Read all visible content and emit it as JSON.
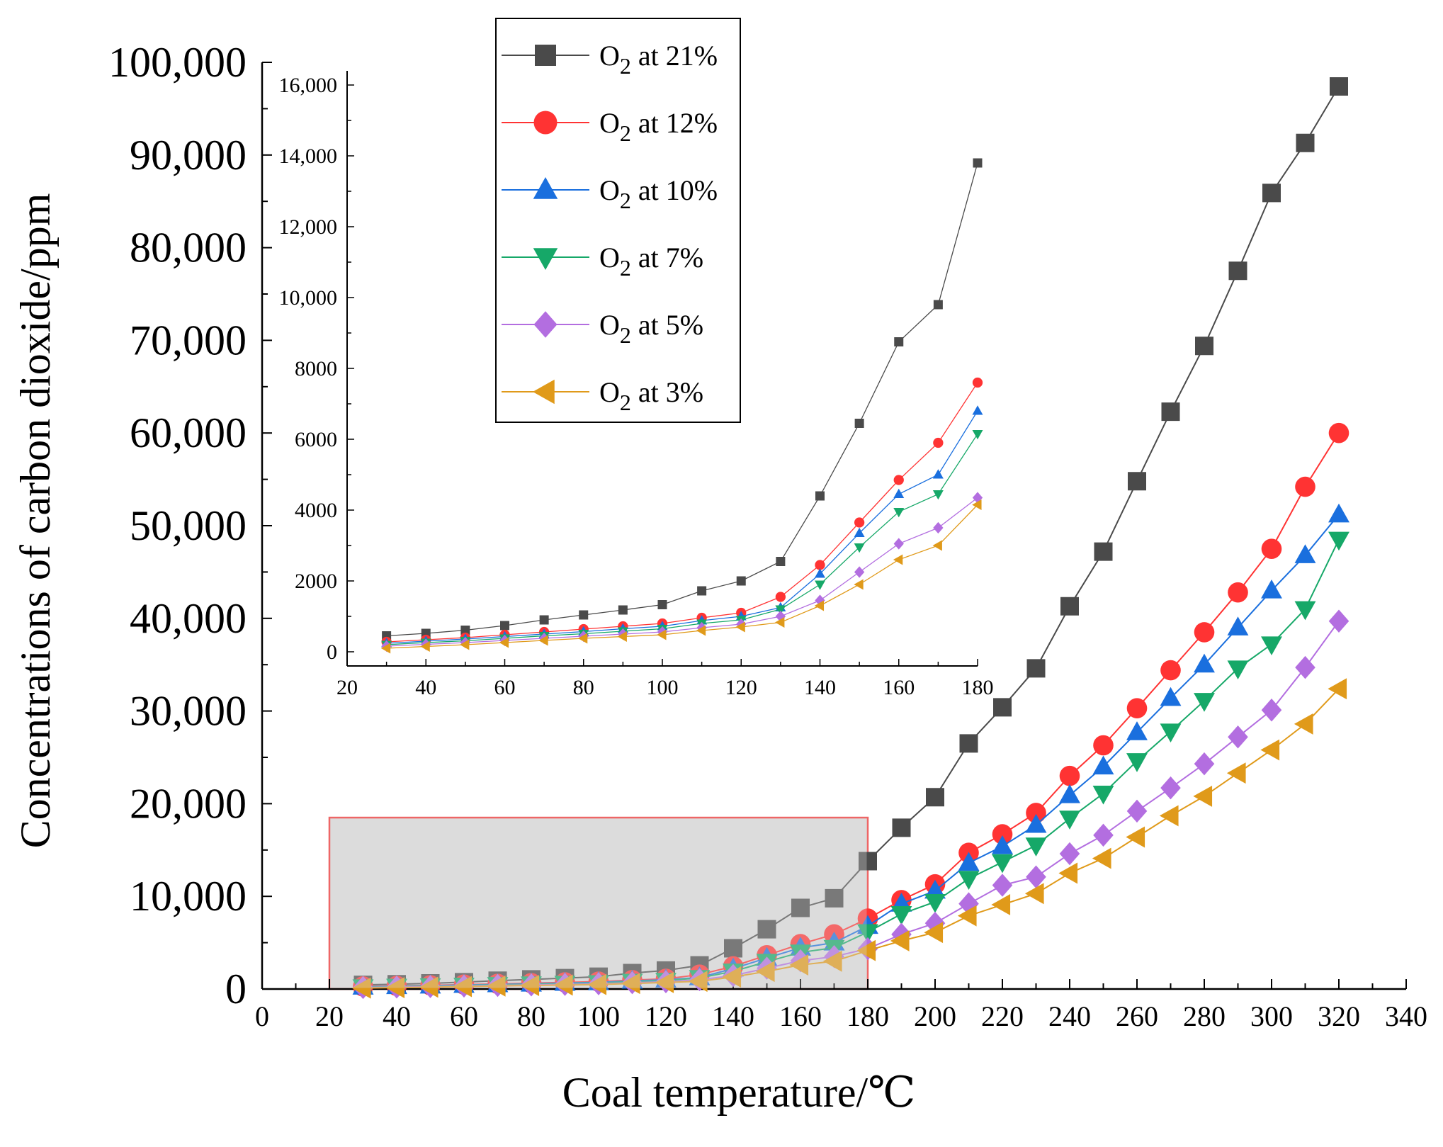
{
  "chart_data": {
    "type": "line",
    "title": "",
    "xlabel": "Coal temperature/℃",
    "ylabel": "Concentrations of carbon dioxide/ppm",
    "xlim": [
      0,
      340
    ],
    "ylim": [
      0,
      100000
    ],
    "xticks": [
      0,
      20,
      40,
      60,
      80,
      100,
      120,
      140,
      160,
      180,
      200,
      220,
      240,
      260,
      280,
      300,
      320,
      340
    ],
    "xtick_labels": [
      "0",
      "20",
      "40",
      "60",
      "80",
      "100",
      "120",
      "140",
      "160",
      "180",
      "200",
      "220",
      "240",
      "260",
      "280",
      "300",
      "320",
      "340"
    ],
    "yticks": [
      0,
      10000,
      20000,
      30000,
      40000,
      50000,
      60000,
      70000,
      80000,
      90000,
      100000
    ],
    "ytick_labels": [
      "0",
      "10,000",
      "20,000",
      "30,000",
      "40,000",
      "50,000",
      "60,000",
      "70,000",
      "80,000",
      "90,000",
      "100,000"
    ],
    "x": [
      30,
      40,
      50,
      60,
      70,
      80,
      90,
      100,
      110,
      120,
      130,
      140,
      150,
      160,
      170,
      180,
      190,
      200,
      210,
      220,
      230,
      240,
      250,
      260,
      270,
      280,
      290,
      300,
      310,
      320
    ],
    "series": [
      {
        "name": "O2 at 21%",
        "legend_main": "O",
        "legend_sub": "2",
        "legend_rest": " at 21%",
        "color": "#4a4a4a",
        "marker": "square",
        "values": [
          450,
          520,
          610,
          740,
          900,
          1040,
          1180,
          1330,
          1720,
          2000,
          2550,
          4400,
          6450,
          8750,
          9800,
          13800,
          17400,
          20700,
          26500,
          30400,
          34600,
          41300,
          47200,
          54800,
          62300,
          69400,
          77500,
          85900,
          91300,
          97400
        ]
      },
      {
        "name": "O2 at 12%",
        "legend_main": "O",
        "legend_sub": "2",
        "legend_rest": " at 12%",
        "color": "#ff3333",
        "marker": "circle",
        "values": [
          280,
          340,
          400,
          480,
          560,
          640,
          720,
          800,
          960,
          1100,
          1550,
          2450,
          3650,
          4850,
          5900,
          7600,
          9600,
          11300,
          14700,
          16700,
          19000,
          23000,
          26300,
          30300,
          34400,
          38500,
          42800,
          47500,
          54200,
          60000
        ]
      },
      {
        "name": "O2 at 10%",
        "legend_main": "O",
        "legend_sub": "2",
        "legend_rest": " at 10%",
        "color": "#1a6fde",
        "marker": "triangle-up",
        "values": [
          240,
          300,
          360,
          430,
          500,
          570,
          650,
          720,
          880,
          1000,
          1250,
          2200,
          3350,
          4450,
          5000,
          6800,
          9200,
          10600,
          13600,
          15400,
          17700,
          20900,
          24000,
          27700,
          31400,
          35000,
          39000,
          43000,
          46800,
          51200
        ]
      },
      {
        "name": "O2 at 7%",
        "legend_main": "O",
        "legend_sub": "2",
        "legend_rest": " at 7%",
        "color": "#16a868",
        "marker": "triangle-down",
        "values": [
          200,
          260,
          310,
          380,
          450,
          510,
          580,
          650,
          800,
          900,
          1200,
          1900,
          2950,
          3950,
          4450,
          6150,
          8100,
          9400,
          11900,
          13700,
          15500,
          18400,
          21100,
          24600,
          27800,
          31100,
          34600,
          37200,
          41000,
          48500
        ]
      },
      {
        "name": "O2 at 5%",
        "legend_main": "O",
        "legend_sub": "2",
        "legend_rest": " at 5%",
        "color": "#b36ee0",
        "marker": "diamond",
        "values": [
          160,
          210,
          260,
          320,
          380,
          440,
          500,
          560,
          680,
          780,
          1000,
          1450,
          2250,
          3050,
          3500,
          4350,
          5900,
          7100,
          9200,
          11200,
          12100,
          14600,
          16600,
          19200,
          21700,
          24300,
          27200,
          30100,
          34700,
          39700
        ]
      },
      {
        "name": "O2 at 3%",
        "legend_main": "O",
        "legend_sub": "2",
        "legend_rest": " at 3%",
        "color": "#e09a1a",
        "marker": "triangle-left",
        "values": [
          100,
          150,
          200,
          260,
          320,
          380,
          430,
          480,
          600,
          700,
          830,
          1300,
          1900,
          2600,
          3000,
          4150,
          5200,
          6100,
          7900,
          9100,
          10300,
          12500,
          14100,
          16400,
          18700,
          20800,
          23300,
          25800,
          28600,
          32400
        ]
      }
    ],
    "highlight_region": {
      "x_range": [
        20,
        180
      ],
      "y_range": [
        0,
        18500
      ]
    },
    "inset": {
      "type": "line",
      "xlim": [
        20,
        180
      ],
      "ylim": [
        -400,
        16400
      ],
      "xticks": [
        20,
        40,
        60,
        80,
        100,
        120,
        140,
        160,
        180
      ],
      "xtick_labels": [
        "20",
        "40",
        "60",
        "80",
        "100",
        "120",
        "140",
        "160",
        "180"
      ],
      "yticks": [
        0,
        2000,
        4000,
        6000,
        8000,
        10000,
        12000,
        14000,
        16000
      ],
      "ytick_labels": [
        "0",
        "2000",
        "4000",
        "6000",
        "8000",
        "10,000",
        "12,000",
        "14,000",
        "16,000"
      ],
      "x": [
        30,
        40,
        50,
        60,
        70,
        80,
        90,
        100,
        110,
        120,
        130,
        140,
        150,
        160,
        170,
        180
      ]
    },
    "legend_position": "top-center"
  }
}
